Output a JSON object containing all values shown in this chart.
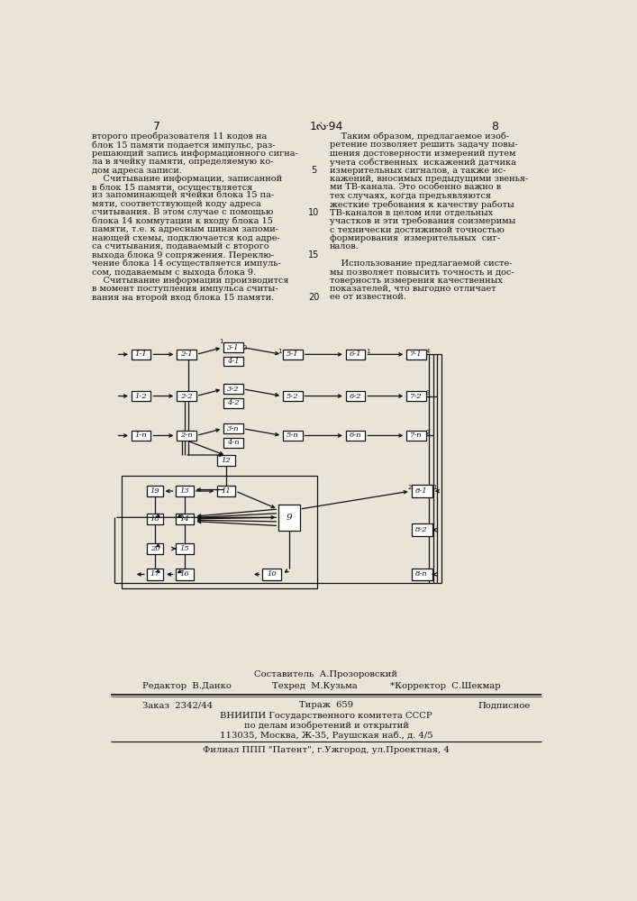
{
  "page_number_left": "7",
  "page_header_center": "1ᔠ94",
  "page_number_right": "8",
  "bg_color": "#e8e4d8",
  "text_color": "#111111",
  "box_color": "#111111",
  "line_color": "#111111",
  "text_left": [
    "второго преобразователя 11 кодов на",
    "блок 15 памяти подается импульс, раз-",
    "решающий запись информационного сигна-",
    "ла в ячейку памяти, определяемую ко-",
    "дом адреса записи.",
    "    Считывание информации, записанной",
    "в блок 15 памяти, осуществляется",
    "из запоминающей ячейки блока 15 па-",
    "мяти, соответствующей коду адреса",
    "считывания. В этом случае с помощью",
    "блока 14 коммутации к входу блока 15",
    "памяти, т.е. к адресным шинам запоми-",
    "нающей схемы, подключается код адре-",
    "са считывания, подаваемый с второго",
    "выхода блока 9 сопряжения. Переклю-",
    "чение блока 14 осуществляется импуль-",
    "сом, подаваемым с выхода блока 9.",
    "    Считывание информации производится",
    "в момент поступления импульса считы-",
    "вания на второй вход блока 15 памяти."
  ],
  "text_right": [
    "    Таким образом, предлагаемое изоб-",
    "ретение позволяет решить задачу повы-",
    "шения достоверности измерений путем",
    "учета собственных  искажений датчика",
    "измерительных сигналов, а также ис-",
    "кажений, вносимых предыдущими звенья-",
    "ми ТВ-канала. Это особенно важно в",
    "тех случаях, когда предъявляются",
    "жесткие требования к качеству работы",
    "ТВ-каналов в целом или отдельных",
    "участков и эти требования соизмеримы",
    "с технически достижимой точностью",
    "формирования  измерительных  сиг-",
    "налов.",
    "",
    "    Использование предлагаемой систе-",
    "мы позволяет повысить точность и дос-",
    "товерность измерения качественных",
    "показателей, что выгодно отличает",
    "ее от известной."
  ]
}
